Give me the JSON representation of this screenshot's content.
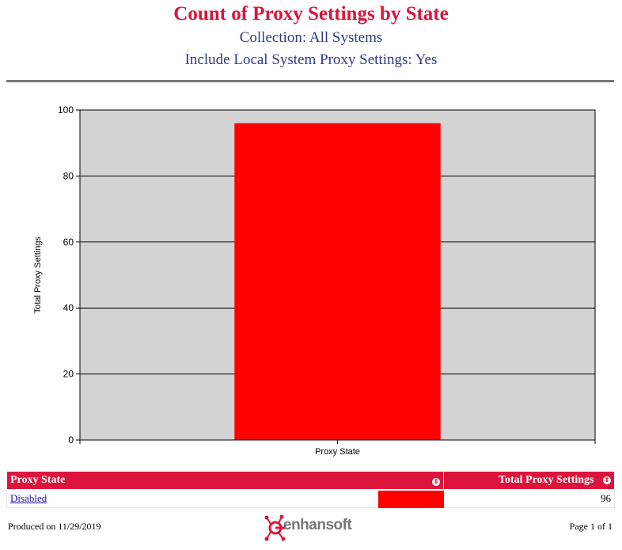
{
  "header": {
    "title": "Count of Proxy Settings by State",
    "subtitle_collection": "Collection: All Systems",
    "subtitle_include": "Include Local System Proxy Settings: Yes"
  },
  "chart_data": {
    "type": "bar",
    "categories": [
      "Disabled"
    ],
    "values": [
      96
    ],
    "xlabel": "Proxy State",
    "ylabel": "Total Proxy Settings",
    "ylim": [
      0,
      100
    ],
    "yticks": [
      0,
      20,
      40,
      60,
      80,
      100
    ],
    "grid": true,
    "bar_color": "#ff0000",
    "plot_background": "#d3d3d3"
  },
  "table": {
    "columns": [
      "Proxy State",
      "Total Proxy Settings"
    ],
    "rows": [
      {
        "state": "Disabled",
        "total": "96",
        "fraction": 1.0
      }
    ],
    "header_color": "#dc143c"
  },
  "footer": {
    "produced": "Produced on 11/29/2019",
    "page": "Page 1 of 1",
    "logo_text": "enhansoft",
    "logo_icon": "enhansoft-logo-icon"
  }
}
